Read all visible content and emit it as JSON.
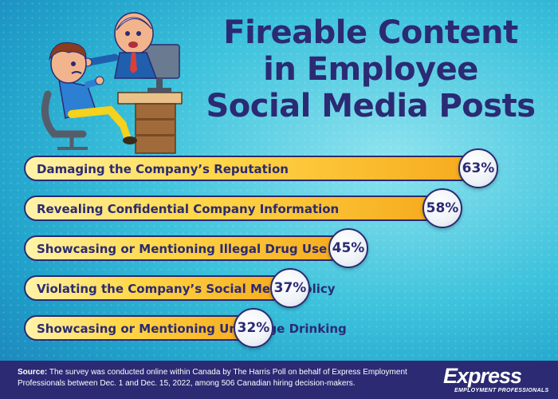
{
  "title": {
    "line1": "Fireable Content",
    "line2": "in Employee",
    "line3": "Social Media Posts"
  },
  "chart_data": {
    "type": "bar",
    "orientation": "horizontal",
    "categories": [
      "Damaging the Company’s Reputation",
      "Revealing Confidential Company Information",
      "Showcasing or Mentioning Illegal Drug Use",
      "Violating the Company’s Social Media Policy",
      "Showcasing or Mentioning Underage Drinking"
    ],
    "values": [
      63,
      58,
      45,
      37,
      32
    ],
    "value_labels": [
      "63%",
      "58%",
      "45%",
      "37%",
      "32%"
    ],
    "unit": "%",
    "bar_colors": [
      "#fff3a8",
      "#ffd84a",
      "#f6a91c"
    ],
    "grid": false,
    "legend": "none"
  },
  "footer": {
    "source_label": "Source:",
    "source_text": "The survey was conducted online within Canada by The Harris Poll on behalf of Express Employment Professionals between Dec. 1 and Dec. 15, 2022, among 506 Canadian hiring decision-makers."
  },
  "logo": {
    "name": "Express",
    "tagline": "EMPLOYMENT PROFESSIONALS"
  },
  "colors": {
    "navy": "#2b2a73",
    "background": "#3cc2dc"
  }
}
